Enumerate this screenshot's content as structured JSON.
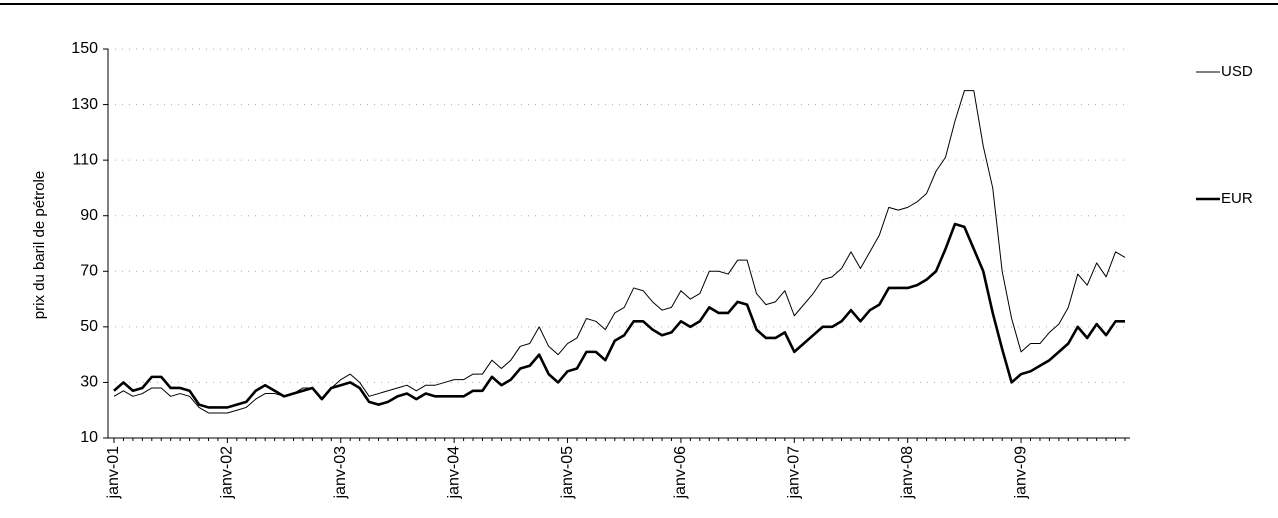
{
  "chart_data": {
    "type": "line",
    "y_label": "prix du baril de pétrole",
    "categories": [
      "janv-01",
      null,
      null,
      null,
      null,
      null,
      null,
      null,
      null,
      null,
      null,
      null,
      "janv-02",
      null,
      null,
      null,
      null,
      null,
      null,
      null,
      null,
      null,
      null,
      null,
      "janv-03",
      null,
      null,
      null,
      null,
      null,
      null,
      null,
      null,
      null,
      null,
      null,
      "janv-04",
      null,
      null,
      null,
      null,
      null,
      null,
      null,
      null,
      null,
      null,
      null,
      "janv-05",
      null,
      null,
      null,
      null,
      null,
      null,
      null,
      null,
      null,
      null,
      null,
      "janv-06",
      null,
      null,
      null,
      null,
      null,
      null,
      null,
      null,
      null,
      null,
      null,
      "janv-07",
      null,
      null,
      null,
      null,
      null,
      null,
      null,
      null,
      null,
      null,
      null,
      "janv-08",
      null,
      null,
      null,
      null,
      null,
      null,
      null,
      null,
      null,
      null,
      null,
      "janv-09",
      null,
      null,
      null,
      null,
      null,
      null,
      null,
      null,
      null,
      null,
      null
    ],
    "series": [
      {
        "name": "USD",
        "color": "#000000",
        "width": 1,
        "values": [
          25,
          27,
          25,
          26,
          28,
          28,
          25,
          26,
          25,
          21,
          19,
          19,
          19,
          20,
          21,
          24,
          26,
          26,
          25,
          26,
          28,
          28,
          24,
          28,
          31,
          33,
          30,
          25,
          26,
          27,
          28,
          29,
          27,
          29,
          29,
          30,
          31,
          31,
          33,
          33,
          38,
          35,
          38,
          43,
          44,
          50,
          43,
          40,
          44,
          46,
          53,
          52,
          49,
          55,
          57,
          64,
          63,
          59,
          56,
          57,
          63,
          60,
          62,
          70,
          70,
          69,
          74,
          74,
          62,
          58,
          59,
          63,
          54,
          58,
          62,
          67,
          68,
          71,
          77,
          71,
          77,
          83,
          93,
          92,
          93,
          95,
          98,
          106,
          111,
          124,
          135,
          135,
          115,
          100,
          70,
          53,
          41,
          44,
          44,
          48,
          51,
          57,
          69,
          65,
          73,
          68,
          77,
          75
        ]
      },
      {
        "name": "EUR",
        "color": "#000000",
        "width": 2.6,
        "values": [
          27,
          30,
          27,
          28,
          32,
          32,
          28,
          28,
          27,
          22,
          21,
          21,
          21,
          22,
          23,
          27,
          29,
          27,
          25,
          26,
          27,
          28,
          24,
          28,
          29,
          30,
          28,
          23,
          22,
          23,
          25,
          26,
          24,
          26,
          25,
          25,
          25,
          25,
          27,
          27,
          32,
          29,
          31,
          35,
          36,
          40,
          33,
          30,
          34,
          35,
          41,
          41,
          38,
          45,
          47,
          52,
          52,
          49,
          47,
          48,
          52,
          50,
          52,
          57,
          55,
          55,
          59,
          58,
          49,
          46,
          46,
          48,
          41,
          44,
          47,
          50,
          50,
          52,
          56,
          52,
          56,
          58,
          64,
          64,
          64,
          65,
          67,
          70,
          78,
          87,
          86,
          78,
          70,
          55,
          42,
          30,
          33,
          34,
          36,
          38,
          41,
          44,
          50,
          46,
          51,
          47,
          52,
          52
        ]
      }
    ],
    "ylim": [
      10,
      150
    ],
    "yticks": [
      10,
      30,
      50,
      70,
      90,
      110,
      130,
      150
    ],
    "grid": true
  }
}
